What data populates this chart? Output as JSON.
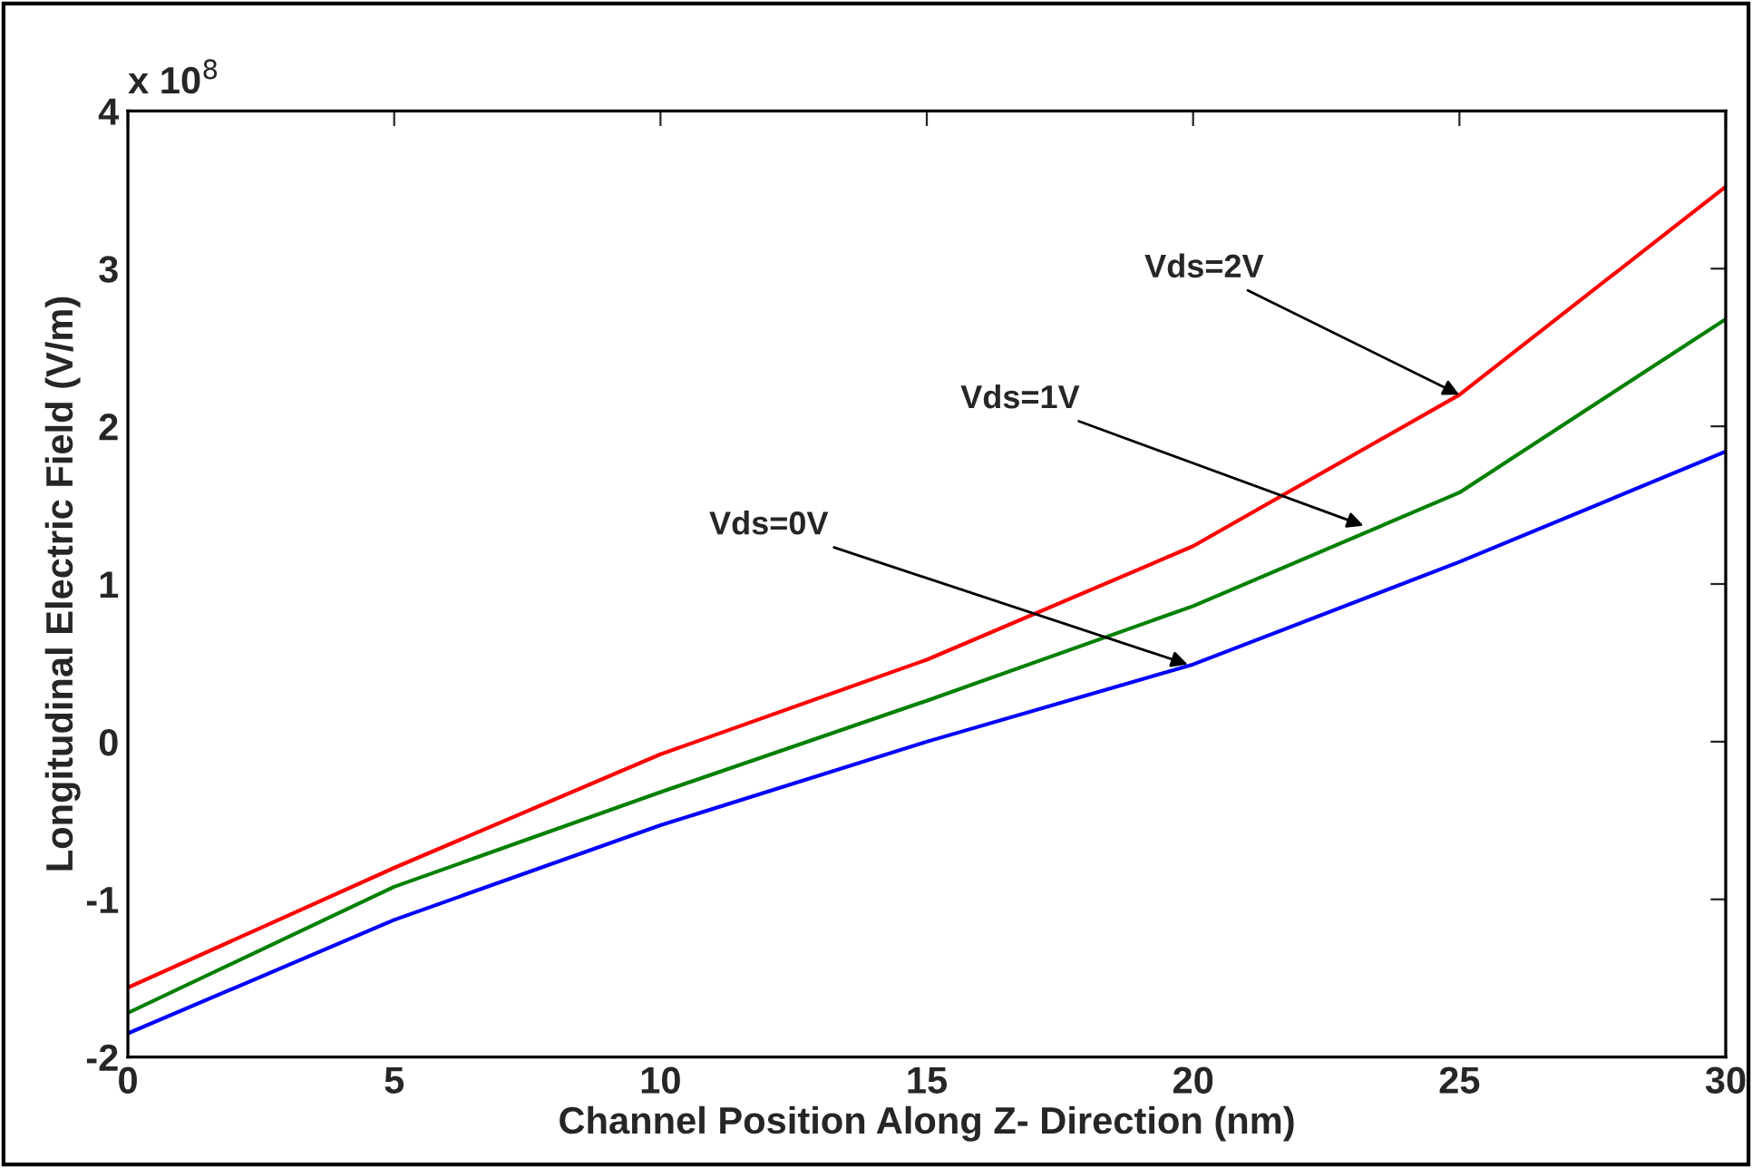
{
  "chart_data": {
    "type": "line",
    "xlabel": "Channel Position Along Z- Direction (nm)",
    "ylabel": "Longitudinal Electric Field (V/m)",
    "x": [
      0,
      5,
      10,
      15,
      20,
      25,
      30
    ],
    "series": [
      {
        "color": "#ff0000",
        "values": [
          -1.56,
          -0.8,
          -0.08,
          0.52,
          1.24,
          2.2,
          3.52
        ]
      },
      {
        "color": "#008000",
        "values": [
          -1.72,
          -0.92,
          -0.32,
          0.26,
          0.86,
          1.58,
          2.68
        ]
      },
      {
        "color": "#0000ff",
        "values": [
          -1.85,
          -1.13,
          -0.53,
          0.0,
          0.49,
          1.14,
          1.84
        ]
      }
    ],
    "xlim": [
      0,
      30
    ],
    "xticks": [
      0,
      5,
      10,
      15,
      20,
      25,
      30
    ],
    "ylim": [
      -2,
      4
    ],
    "yticks": [
      -2,
      -1,
      0,
      1,
      2,
      3,
      4
    ],
    "annotations": [
      "x 10$^{8}$",
      {
        "text": "Vds=2V",
        "x": 25,
        "y": 2.2
      },
      {
        "text": "Vds=1V",
        "x": 23.2,
        "y": 1.37
      },
      {
        "text": "Vds=0V",
        "x": 19.9,
        "y": 0.49
      }
    ],
    "grid": false,
    "legend": false,
    "marker": "none",
    "line_style": "solid"
  }
}
